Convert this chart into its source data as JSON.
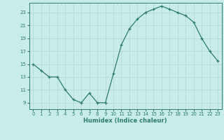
{
  "x": [
    0,
    1,
    2,
    3,
    4,
    5,
    6,
    7,
    8,
    9,
    10,
    11,
    12,
    13,
    14,
    15,
    16,
    17,
    18,
    19,
    20,
    21,
    22,
    23
  ],
  "y": [
    15,
    14,
    13,
    13,
    11,
    9.5,
    9,
    10.5,
    9,
    9,
    13.5,
    18,
    20.5,
    22,
    23,
    23.5,
    24,
    23.5,
    23,
    22.5,
    21.5,
    19,
    17,
    15.5
  ],
  "line_color": "#2e7d6e",
  "marker_color": "#2e7d6e",
  "bg_color": "#c8ece8",
  "grid_color": "#b5d9d4",
  "xlabel": "Humidex (Indice chaleur)",
  "xlim": [
    -0.5,
    23.5
  ],
  "ylim": [
    8.0,
    24.5
  ],
  "yticks": [
    9,
    11,
    13,
    15,
    17,
    19,
    21,
    23
  ],
  "xticks": [
    0,
    1,
    2,
    3,
    4,
    5,
    6,
    7,
    8,
    9,
    10,
    11,
    12,
    13,
    14,
    15,
    16,
    17,
    18,
    19,
    20,
    21,
    22,
    23
  ]
}
